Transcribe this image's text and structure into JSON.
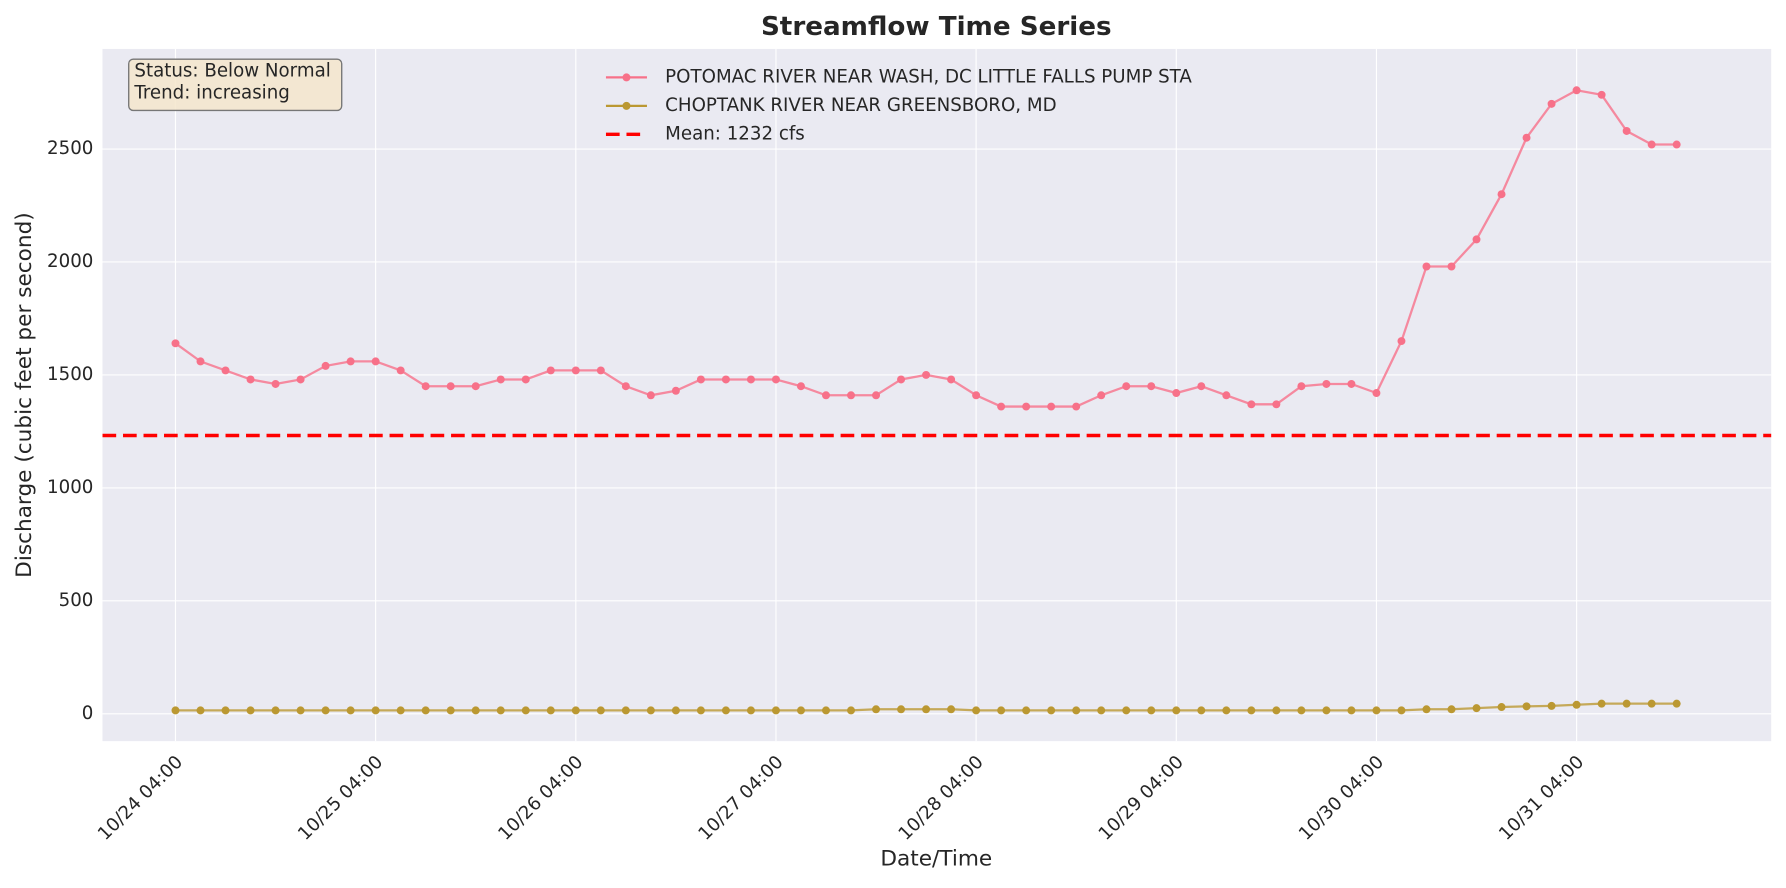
{
  "chart_data": {
    "type": "line",
    "title": "Streamflow Time Series",
    "xlabel": "Date/Time",
    "ylabel": "Discharge (cubic feet per second)",
    "x": [
      "10/24 04:00",
      "10/24 07:00",
      "10/24 10:00",
      "10/24 13:00",
      "10/24 16:00",
      "10/24 19:00",
      "10/24 22:00",
      "10/25 01:00",
      "10/25 04:00",
      "10/25 07:00",
      "10/25 10:00",
      "10/25 13:00",
      "10/25 16:00",
      "10/25 19:00",
      "10/25 22:00",
      "10/26 01:00",
      "10/26 04:00",
      "10/26 07:00",
      "10/26 10:00",
      "10/26 13:00",
      "10/26 16:00",
      "10/26 19:00",
      "10/26 22:00",
      "10/27 01:00",
      "10/27 04:00",
      "10/27 07:00",
      "10/27 10:00",
      "10/27 13:00",
      "10/27 16:00",
      "10/27 19:00",
      "10/27 22:00",
      "10/28 01:00",
      "10/28 04:00",
      "10/28 07:00",
      "10/28 10:00",
      "10/28 13:00",
      "10/28 16:00",
      "10/28 19:00",
      "10/28 22:00",
      "10/29 01:00",
      "10/29 04:00",
      "10/29 07:00",
      "10/29 10:00",
      "10/29 13:00",
      "10/29 16:00",
      "10/29 19:00",
      "10/29 22:00",
      "10/30 01:00",
      "10/30 04:00",
      "10/30 07:00",
      "10/30 10:00",
      "10/30 13:00",
      "10/30 16:00",
      "10/30 19:00",
      "10/30 22:00",
      "10/31 01:00",
      "10/31 04:00",
      "10/31 07:00",
      "10/31 10:00",
      "10/31 13:00",
      "10/31 16:00"
    ],
    "series": [
      {
        "name": "POTOMAC RIVER NEAR WASH, DC LITTLE FALLS PUMP STA",
        "color": "#f77189",
        "values": [
          1640,
          1560,
          1520,
          1480,
          1460,
          1480,
          1540,
          1560,
          1560,
          1520,
          1450,
          1450,
          1450,
          1480,
          1480,
          1520,
          1520,
          1520,
          1450,
          1410,
          1430,
          1480,
          1480,
          1480,
          1480,
          1450,
          1410,
          1410,
          1410,
          1480,
          1500,
          1480,
          1410,
          1360,
          1360,
          1360,
          1360,
          1410,
          1450,
          1450,
          1420,
          1450,
          1410,
          1370,
          1370,
          1450,
          1460,
          1460,
          1420,
          1650,
          1980,
          1980,
          2100,
          2300,
          2550,
          2700,
          2760,
          2740,
          2580,
          2520,
          2520
        ]
      },
      {
        "name": "CHOPTANK RIVER NEAR GREENSBORO, MD",
        "color": "#bb9832",
        "values": [
          15,
          15,
          15,
          15,
          15,
          15,
          15,
          15,
          15,
          15,
          15,
          15,
          15,
          15,
          15,
          15,
          15,
          15,
          15,
          15,
          15,
          15,
          15,
          15,
          15,
          15,
          15,
          15,
          20,
          20,
          20,
          20,
          15,
          15,
          15,
          15,
          15,
          15,
          15,
          15,
          15,
          15,
          15,
          15,
          15,
          15,
          15,
          15,
          15,
          15,
          20,
          20,
          25,
          30,
          33,
          35,
          40,
          45,
          45,
          45,
          45
        ]
      }
    ],
    "mean_line": {
      "value": 1232,
      "label": "Mean: 1232 cfs",
      "color": "#ff0000"
    },
    "annotations": [
      "Status: Below Normal",
      "Trend: increasing"
    ],
    "xlim": [
      "10/23 19:15",
      "11/01 03:20"
    ],
    "xticks": [
      "10/24 04:00",
      "10/25 04:00",
      "10/26 04:00",
      "10/27 04:00",
      "10/28 04:00",
      "10/29 04:00",
      "10/30 04:00",
      "10/31 04:00"
    ],
    "ylim": [
      -121,
      2943
    ],
    "yticks": [
      0,
      500,
      1000,
      1500,
      2000,
      2500
    ],
    "grid": true,
    "legend": "upper center"
  }
}
